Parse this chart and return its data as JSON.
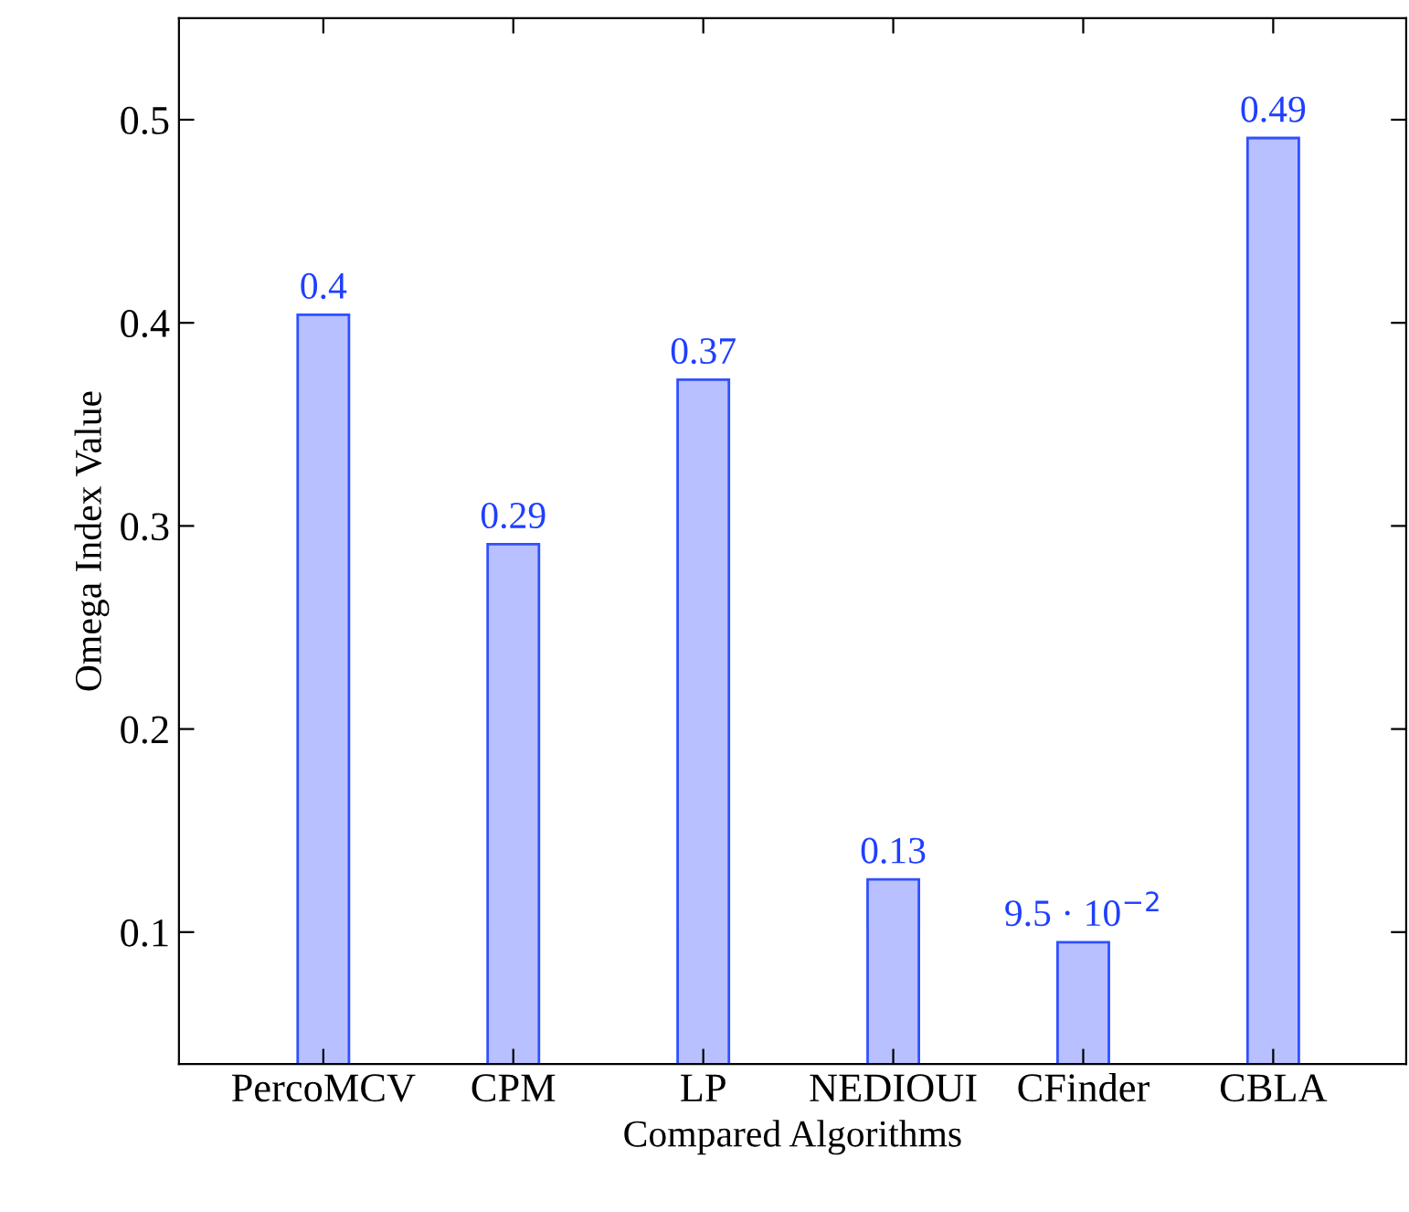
{
  "chart_data": {
    "type": "bar",
    "xlabel": "Compared Algorithms",
    "ylabel": "Omega Index Value",
    "categories": [
      "PercoMCV",
      "CPM",
      "LP",
      "NEDIOUI",
      "CFinder",
      "CBLA"
    ],
    "series": [
      {
        "color": "#b8c0ff",
        "values": [
          0.404,
          0.291,
          0.372,
          0.126,
          0.095,
          0.491
        ],
        "value_labels": [
          "0.4",
          "0.29",
          "0.37",
          "0.13",
          "9.5 · 10$^{−2}$",
          "0.49"
        ]
      }
    ],
    "ylim": [
      0.035,
      0.55
    ],
    "yticks": [
      0.1,
      0.2,
      0.3,
      0.4,
      0.5
    ],
    "grid": false,
    "legend": false
  }
}
